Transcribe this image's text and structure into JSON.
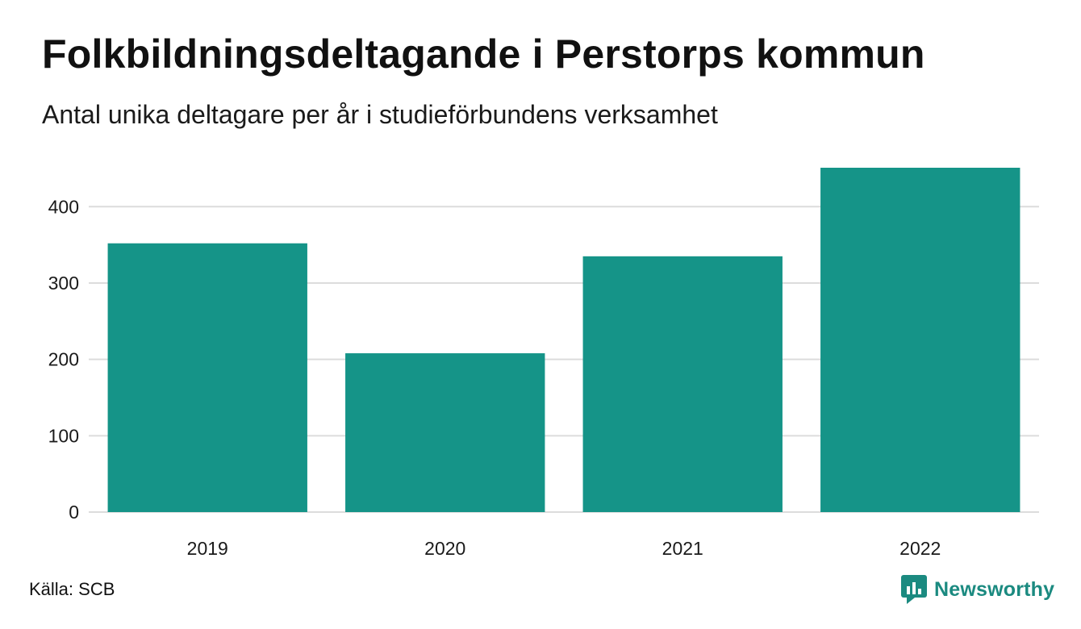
{
  "header": {
    "title": "Folkbildningsdeltagande i Perstorps kommun",
    "subtitle": "Antal unika deltagare per år i studieförbundens verksamhet"
  },
  "footer": {
    "source": "Källa: SCB",
    "brand_name": "Newsworthy",
    "brand_icon": "newsworthy-logo-icon"
  },
  "chart_data": {
    "type": "bar",
    "categories": [
      "2019",
      "2020",
      "2021",
      "2022"
    ],
    "values": [
      352,
      208,
      335,
      451
    ],
    "ylim": [
      0,
      451
    ],
    "yticks": [
      0,
      100,
      200,
      300,
      400
    ],
    "xlabel": "",
    "ylabel": "",
    "grid": true,
    "legend": "none",
    "colors": {
      "bar": "#159488",
      "grid": "#dcdcdc"
    }
  }
}
